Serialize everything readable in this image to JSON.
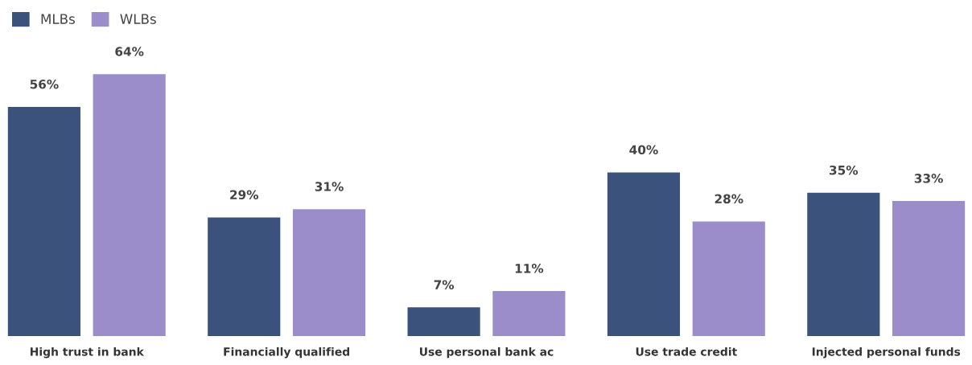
{
  "chart_data": {
    "type": "bar",
    "categories": [
      "High trust in bank",
      "Financially qualified",
      "Use personal bank ac",
      "Use trade credit",
      "Injected personal funds"
    ],
    "series": [
      {
        "name": "MLBs",
        "color": "#3b527c",
        "values": [
          56,
          29,
          7,
          40,
          35
        ],
        "value_labels": [
          "56%",
          "29%",
          "7%",
          "40%",
          "35%"
        ]
      },
      {
        "name": "WLBs",
        "color": "#9b8dca",
        "values": [
          64,
          31,
          11,
          28,
          33
        ],
        "value_labels": [
          "64%",
          "31%",
          "11%",
          "28%",
          "33%"
        ]
      }
    ],
    "legend": "top left",
    "grid": false
  }
}
